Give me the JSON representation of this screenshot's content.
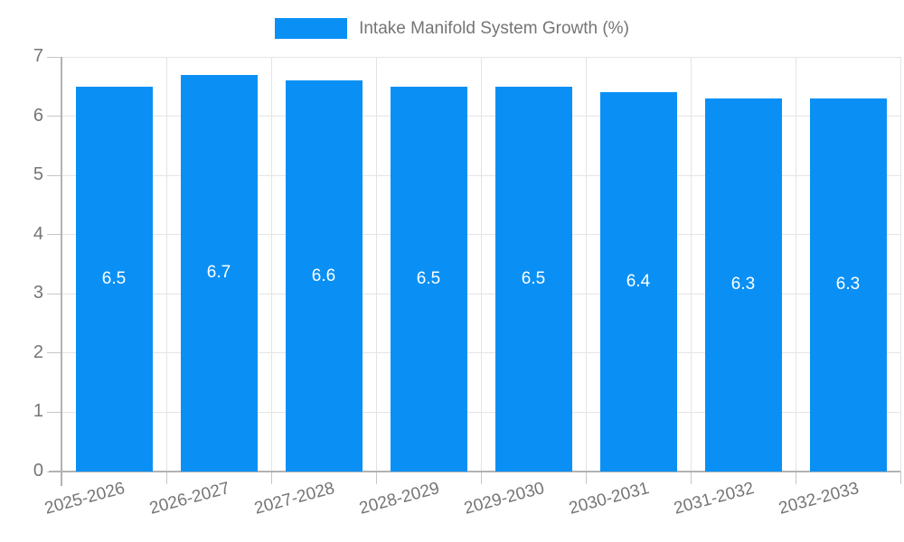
{
  "chart_data": {
    "type": "bar",
    "title": "Intake Manifold System Growth (%)",
    "categories": [
      "2025-2026",
      "2026-2027",
      "2027-2028",
      "2028-2029",
      "2029-2030",
      "2030-2031",
      "2031-2032",
      "2032-2033"
    ],
    "values": [
      6.5,
      6.7,
      6.6,
      6.5,
      6.5,
      6.4,
      6.3,
      6.3
    ],
    "bar_labels": [
      "6.5",
      "6.7",
      "6.6",
      "6.5",
      "6.5",
      "6.4",
      "6.3",
      "6.3"
    ],
    "xlabel": "",
    "ylabel": "",
    "ylim": [
      0,
      7
    ],
    "yticks": [
      "0",
      "1",
      "2",
      "3",
      "4",
      "5",
      "6",
      "7"
    ],
    "grid": true,
    "legend_position": "top-center",
    "colors": {
      "bar": "#0a90f5",
      "bar_label_text": "#ffffff",
      "axis_text": "#757575",
      "gridline": "#e4e4e4",
      "axis_line": "#b2b2b2"
    }
  }
}
